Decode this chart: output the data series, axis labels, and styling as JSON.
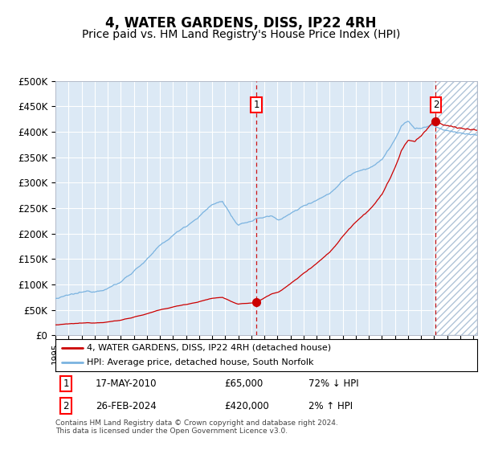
{
  "title": "4, WATER GARDENS, DISS, IP22 4RH",
  "subtitle": "Price paid vs. HM Land Registry's House Price Index (HPI)",
  "title_fontsize": 12,
  "subtitle_fontsize": 10,
  "hpi_color": "#7ab3e0",
  "price_color": "#cc0000",
  "bg_color": "#dce9f5",
  "future_hatch_color": "#b0c4d8",
  "grid_color": "#c8d8e8",
  "ylim": [
    0,
    500000
  ],
  "yticks": [
    0,
    50000,
    100000,
    150000,
    200000,
    250000,
    300000,
    350000,
    400000,
    450000,
    500000
  ],
  "ytick_labels": [
    "£0",
    "£50K",
    "£100K",
    "£150K",
    "£200K",
    "£250K",
    "£300K",
    "£350K",
    "£400K",
    "£450K",
    "£500K"
  ],
  "xmin": 1995.0,
  "xmax": 2027.3,
  "t1_x": 2010.38,
  "t2_x": 2024.13,
  "t1_price": 65000,
  "t2_price": 420000,
  "transaction1": {
    "date": "17-MAY-2010",
    "price": 65000,
    "pct": "72%",
    "direction": "↓"
  },
  "transaction2": {
    "date": "26-FEB-2024",
    "price": 420000,
    "pct": "2%",
    "direction": "↑"
  },
  "legend_label1": "4, WATER GARDENS, DISS, IP22 4RH (detached house)",
  "legend_label2": "HPI: Average price, detached house, South Norfolk",
  "footer": "Contains HM Land Registry data © Crown copyright and database right 2024.\nThis data is licensed under the Open Government Licence v3.0."
}
